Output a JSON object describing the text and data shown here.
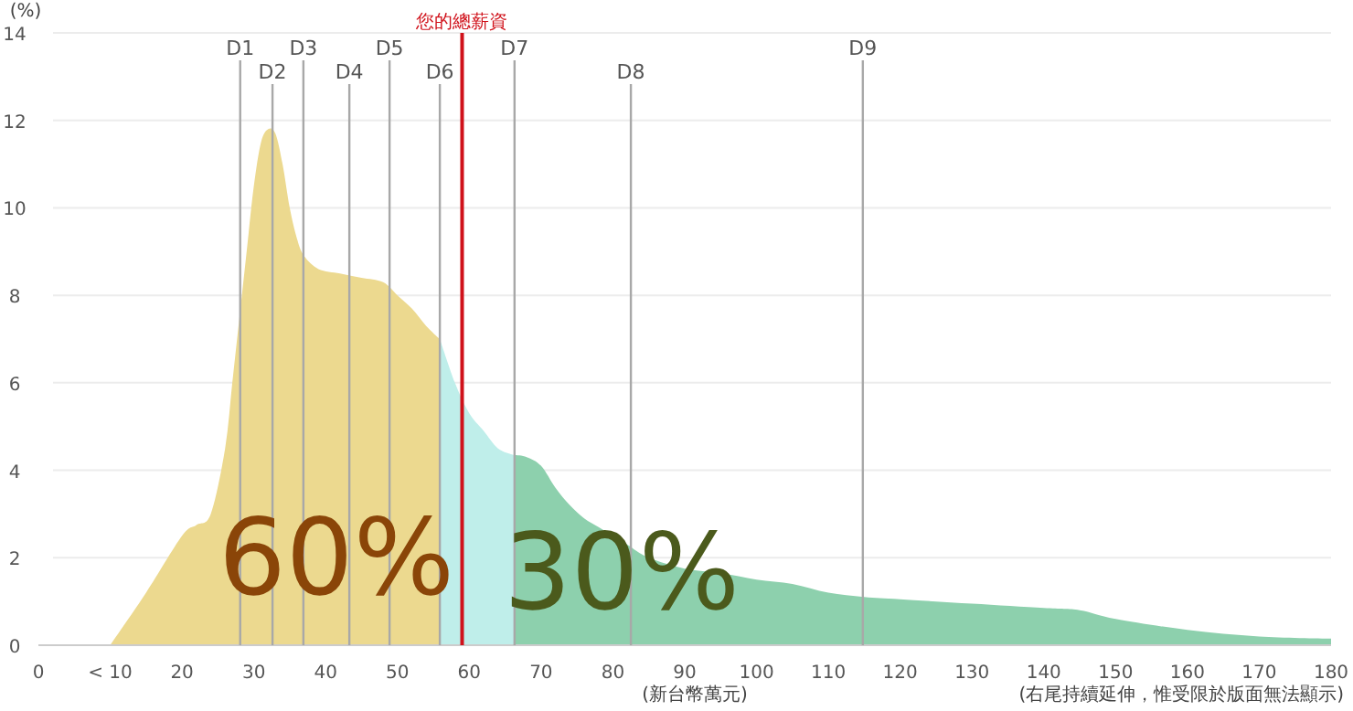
{
  "chart_data": {
    "type": "area",
    "xlabel": "(新台幣萬元)",
    "ylabel": "(%)",
    "xlim": [
      0,
      180
    ],
    "ylim": [
      0,
      14
    ],
    "xticks": [
      0,
      {
        "value": 10,
        "label": "< 10"
      },
      20,
      30,
      40,
      50,
      60,
      70,
      80,
      90,
      100,
      110,
      120,
      130,
      140,
      150,
      160,
      170,
      180
    ],
    "yticks": [
      0,
      2,
      4,
      6,
      8,
      10,
      12,
      14
    ],
    "grid": "y",
    "series": [
      {
        "color": "#ecd98f",
        "x": [
          10,
          15,
          20,
          22,
          24,
          26,
          27,
          28,
          29,
          30,
          31,
          32,
          33,
          34,
          35,
          36,
          37,
          39,
          42,
          45,
          48,
          50,
          52,
          54,
          55.9
        ],
        "values": [
          0,
          1.2,
          2.5,
          2.75,
          3.0,
          4.5,
          6,
          7.5,
          9,
          10.5,
          11.5,
          11.8,
          11.7,
          11,
          10,
          9.3,
          8.9,
          8.6,
          8.5,
          8.4,
          8.3,
          8.0,
          7.7,
          7.3,
          7.0
        ]
      },
      {
        "color": "#bfeeea",
        "x": [
          55.9,
          58,
          60,
          62,
          64,
          66.2
        ],
        "values": [
          7.0,
          6.0,
          5.3,
          4.9,
          4.5,
          4.35
        ]
      },
      {
        "color": "#8dd0ad",
        "x": [
          66.2,
          68,
          70,
          72,
          74,
          76,
          78,
          80,
          82,
          85,
          90,
          95,
          100,
          105,
          110,
          115,
          120,
          130,
          140,
          145,
          150,
          160,
          170,
          180
        ],
        "values": [
          4.35,
          4.3,
          4.1,
          3.6,
          3.2,
          2.9,
          2.7,
          2.5,
          2.3,
          2.0,
          1.75,
          1.65,
          1.5,
          1.4,
          1.2,
          1.1,
          1.05,
          0.95,
          0.85,
          0.8,
          0.6,
          0.35,
          0.2,
          0.15
        ]
      }
    ],
    "ref_lines": [
      {
        "axis": "x",
        "value": 28.1,
        "label": "D1",
        "color": "#a8a8a8"
      },
      {
        "axis": "x",
        "value": 32.6,
        "label": "D2",
        "color": "#a8a8a8"
      },
      {
        "axis": "x",
        "value": 36.9,
        "label": "D3",
        "color": "#a8a8a8"
      },
      {
        "axis": "x",
        "value": 43.3,
        "label": "D4",
        "color": "#a8a8a8"
      },
      {
        "axis": "x",
        "value": 48.9,
        "label": "D5",
        "color": "#a8a8a8"
      },
      {
        "axis": "x",
        "value": 55.9,
        "label": "D6",
        "color": "#a8a8a8"
      },
      {
        "axis": "x",
        "value": 59,
        "label": "您的總薪資",
        "color": "#d0121b"
      },
      {
        "axis": "x",
        "value": 66.3,
        "label": "D7",
        "color": "#a8a8a8"
      },
      {
        "axis": "x",
        "value": 82.5,
        "label": "D8",
        "color": "#a8a8a8"
      },
      {
        "axis": "x",
        "value": 114.8,
        "label": "D9",
        "color": "#a8a8a8"
      }
    ],
    "annotations": [
      "60%",
      "30%",
      "(右尾持續延伸，惟受限於版面無法顯示)"
    ]
  }
}
